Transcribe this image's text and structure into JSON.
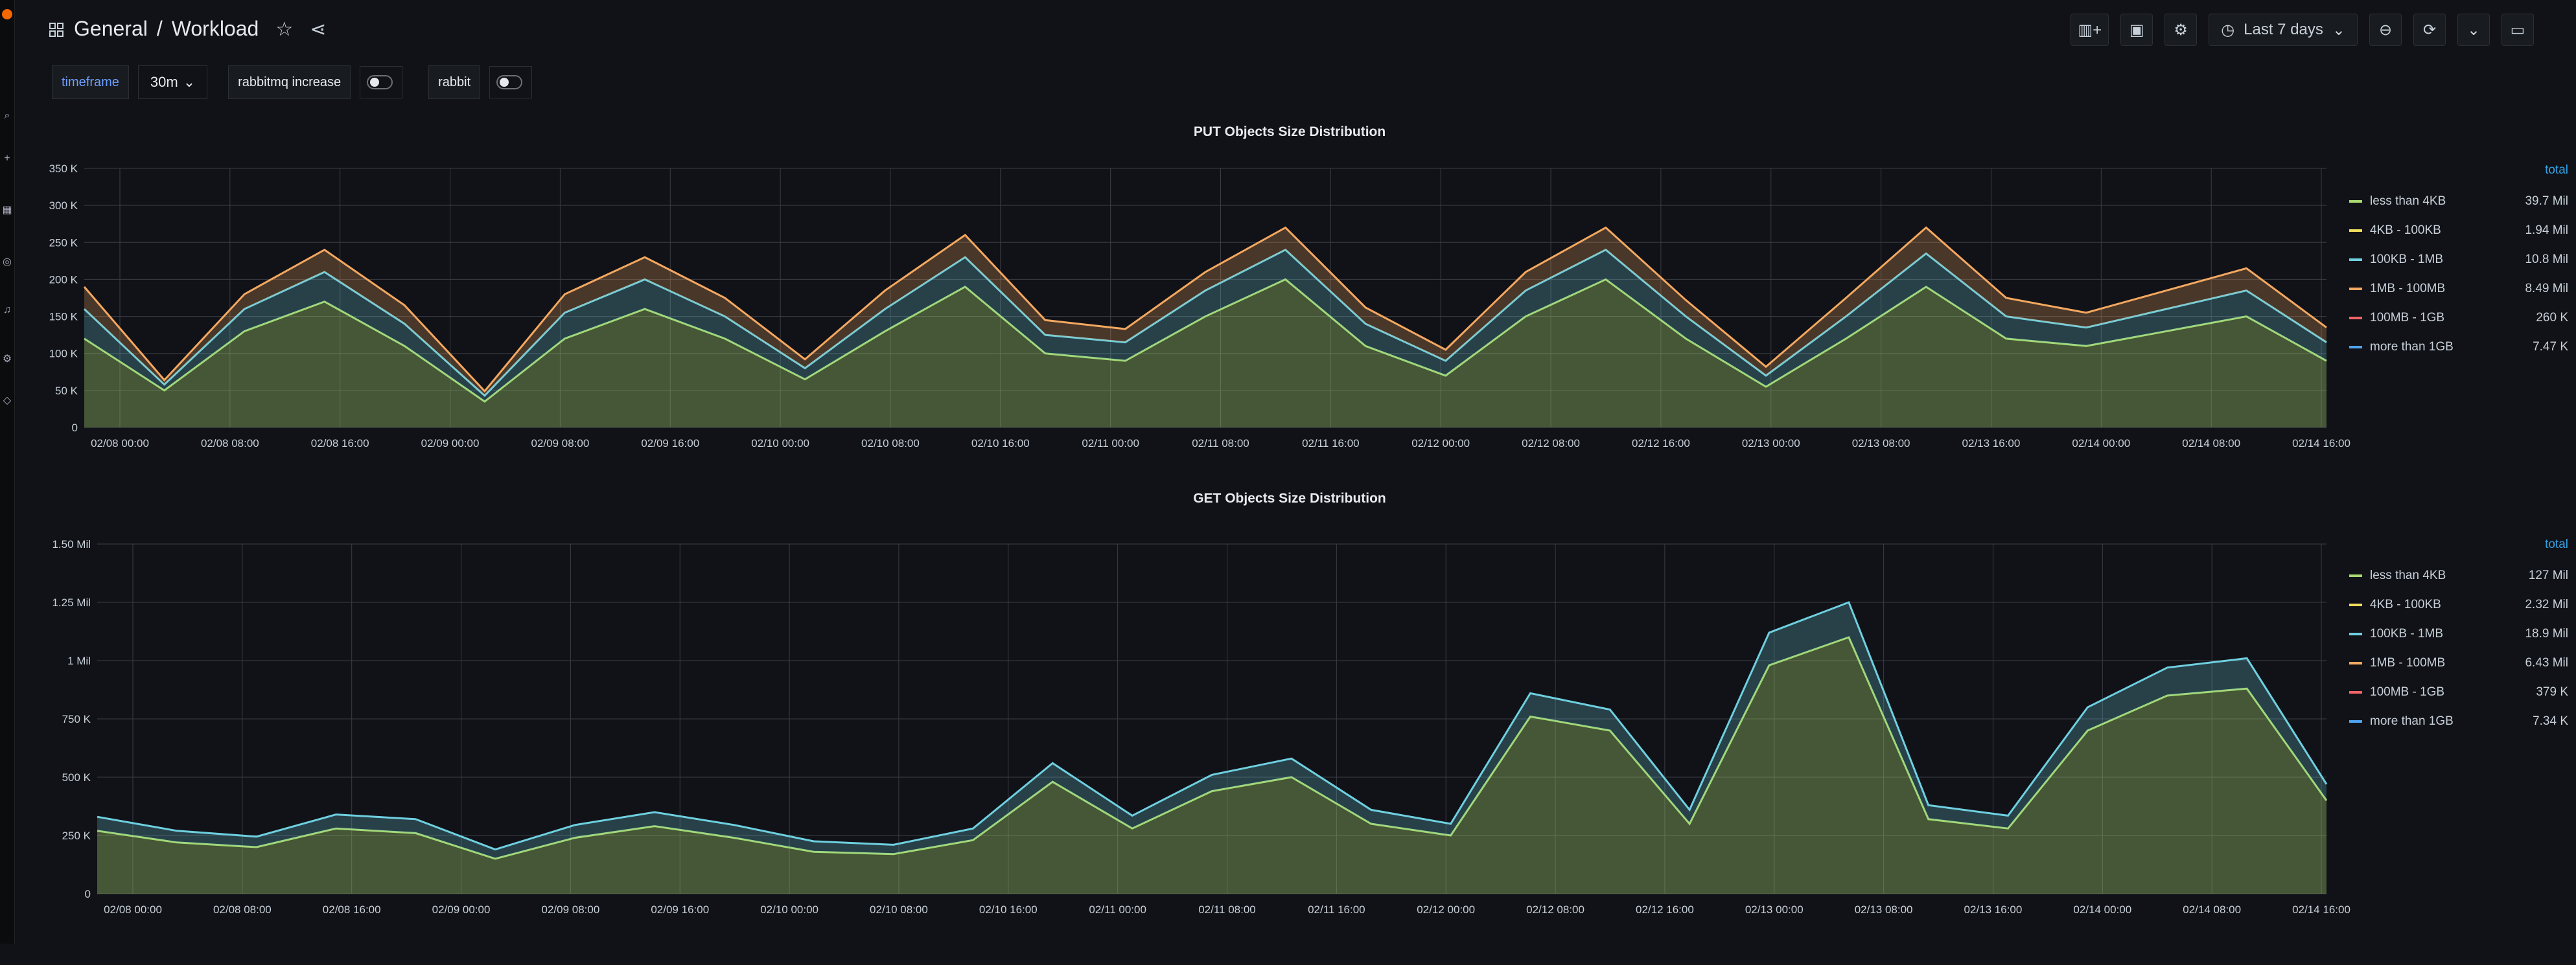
{
  "breadcrumb": {
    "folder": "General",
    "separator": "/",
    "dashboard": "Workload"
  },
  "toolbar": {
    "time_range": "Last 7 days"
  },
  "variables": [
    {
      "label": "timeframe",
      "value": "30m"
    },
    {
      "label": "rabbitmq increase"
    },
    {
      "label": "rabbit"
    }
  ],
  "colors": {
    "less_than_4kb": "#a7d96f",
    "4kb_100kb": "#f2dd5c",
    "100kb_1mb": "#6ed0e0",
    "1mb_100mb": "#f4a860",
    "100mb_1gb": "#f26464",
    "more_than_1gb": "#4ea4f0"
  },
  "panels": [
    {
      "title": "PUT Objects Size Distribution",
      "legend_header": "total",
      "legend": [
        {
          "name": "less than 4KB",
          "value": "39.7 Mil"
        },
        {
          "name": "4KB - 100KB",
          "value": "1.94 Mil"
        },
        {
          "name": "100KB - 1MB",
          "value": "10.8 Mil"
        },
        {
          "name": "1MB - 100MB",
          "value": "8.49 Mil"
        },
        {
          "name": "100MB - 1GB",
          "value": "260 K"
        },
        {
          "name": "more than 1GB",
          "value": "7.47 K"
        }
      ],
      "y_ticks": [
        "350 K",
        "300 K",
        "250 K",
        "200 K",
        "150 K",
        "100 K",
        "50 K",
        "0"
      ],
      "x_ticks": [
        "02/08 00:00",
        "02/08 08:00",
        "02/08 16:00",
        "02/09 00:00",
        "02/09 08:00",
        "02/09 16:00",
        "02/10 00:00",
        "02/10 08:00",
        "02/10 16:00",
        "02/11 00:00",
        "02/11 08:00",
        "02/11 16:00",
        "02/12 00:00",
        "02/12 08:00",
        "02/12 16:00",
        "02/13 00:00",
        "02/13 08:00",
        "02/13 16:00",
        "02/14 00:00",
        "02/14 08:00",
        "02/14 16:00"
      ]
    },
    {
      "title": "GET Objects Size Distribution",
      "legend_header": "total",
      "legend": [
        {
          "name": "less than 4KB",
          "value": "127 Mil"
        },
        {
          "name": "4KB - 100KB",
          "value": "2.32 Mil"
        },
        {
          "name": "100KB - 1MB",
          "value": "18.9 Mil"
        },
        {
          "name": "1MB - 100MB",
          "value": "6.43 Mil"
        },
        {
          "name": "100MB - 1GB",
          "value": "379 K"
        },
        {
          "name": "more than 1GB",
          "value": "7.34 K"
        }
      ],
      "y_ticks": [
        "1.50 Mil",
        "1.25 Mil",
        "1 Mil",
        "750 K",
        "500 K",
        "250 K",
        "0"
      ],
      "x_ticks": [
        "02/08 00:00",
        "02/08 08:00",
        "02/08 16:00",
        "02/09 00:00",
        "02/09 08:00",
        "02/09 16:00",
        "02/10 00:00",
        "02/10 08:00",
        "02/10 16:00",
        "02/11 00:00",
        "02/11 08:00",
        "02/11 16:00",
        "02/12 00:00",
        "02/12 08:00",
        "02/12 16:00",
        "02/13 00:00",
        "02/13 08:00",
        "02/13 16:00",
        "02/14 00:00",
        "02/14 08:00",
        "02/14 16:00"
      ]
    }
  ],
  "chart_data": [
    {
      "type": "area",
      "title": "PUT Objects Size Distribution",
      "ylim": [
        0,
        350000
      ],
      "x": [
        "02/07 18:00",
        "02/08 00:00",
        "02/08 06:00",
        "02/08 12:00",
        "02/08 18:00",
        "02/09 00:00",
        "02/09 06:00",
        "02/09 12:00",
        "02/09 18:00",
        "02/10 00:00",
        "02/10 06:00",
        "02/10 12:00",
        "02/10 18:00",
        "02/11 00:00",
        "02/11 06:00",
        "02/11 12:00",
        "02/11 18:00",
        "02/12 00:00",
        "02/12 06:00",
        "02/12 12:00",
        "02/12 18:00",
        "02/13 00:00",
        "02/13 06:00",
        "02/13 12:00",
        "02/13 18:00",
        "02/14 00:00",
        "02/14 06:00",
        "02/14 12:00",
        "02/14 18:00"
      ],
      "series": [
        {
          "name": "less than 4KB",
          "values": [
            120000,
            50000,
            130000,
            170000,
            110000,
            35000,
            120000,
            160000,
            120000,
            65000,
            130000,
            190000,
            100000,
            90000,
            150000,
            200000,
            110000,
            70000,
            150000,
            200000,
            120000,
            55000,
            120000,
            190000,
            120000,
            110000,
            130000,
            150000,
            90000
          ]
        },
        {
          "name": "100KB - 1MB",
          "values": [
            40000,
            8000,
            30000,
            40000,
            30000,
            8000,
            35000,
            40000,
            30000,
            15000,
            30000,
            40000,
            25000,
            25000,
            35000,
            40000,
            30000,
            20000,
            35000,
            40000,
            30000,
            15000,
            30000,
            45000,
            30000,
            25000,
            30000,
            35000,
            25000
          ]
        },
        {
          "name": "1MB - 100MB",
          "values": [
            30000,
            6000,
            20000,
            30000,
            25000,
            6000,
            25000,
            30000,
            25000,
            12000,
            25000,
            30000,
            20000,
            18000,
            25000,
            30000,
            22000,
            15000,
            25000,
            30000,
            22000,
            12000,
            25000,
            35000,
            25000,
            20000,
            25000,
            30000,
            20000
          ]
        }
      ]
    },
    {
      "type": "area",
      "title": "GET Objects Size Distribution",
      "ylim": [
        0,
        1500000
      ],
      "x": [
        "02/07 18:00",
        "02/08 00:00",
        "02/08 06:00",
        "02/08 12:00",
        "02/08 18:00",
        "02/09 00:00",
        "02/09 06:00",
        "02/09 12:00",
        "02/09 18:00",
        "02/10 00:00",
        "02/10 06:00",
        "02/10 12:00",
        "02/10 18:00",
        "02/11 00:00",
        "02/11 06:00",
        "02/11 12:00",
        "02/11 18:00",
        "02/12 00:00",
        "02/12 06:00",
        "02/12 12:00",
        "02/12 18:00",
        "02/13 00:00",
        "02/13 06:00",
        "02/13 12:00",
        "02/13 18:00",
        "02/14 00:00",
        "02/14 06:00",
        "02/14 12:00",
        "02/14 18:00"
      ],
      "series": [
        {
          "name": "less than 4KB",
          "values": [
            270000,
            220000,
            200000,
            280000,
            260000,
            150000,
            240000,
            290000,
            240000,
            180000,
            170000,
            230000,
            480000,
            280000,
            440000,
            500000,
            300000,
            250000,
            760000,
            700000,
            300000,
            980000,
            1100000,
            320000,
            280000,
            700000,
            850000,
            880000,
            400000
          ]
        },
        {
          "name": "100KB - 1MB",
          "values": [
            60000,
            50000,
            45000,
            60000,
            60000,
            40000,
            55000,
            60000,
            55000,
            45000,
            40000,
            50000,
            80000,
            55000,
            70000,
            80000,
            60000,
            50000,
            100000,
            90000,
            60000,
            140000,
            150000,
            60000,
            55000,
            100000,
            120000,
            130000,
            70000
          ]
        }
      ]
    }
  ]
}
